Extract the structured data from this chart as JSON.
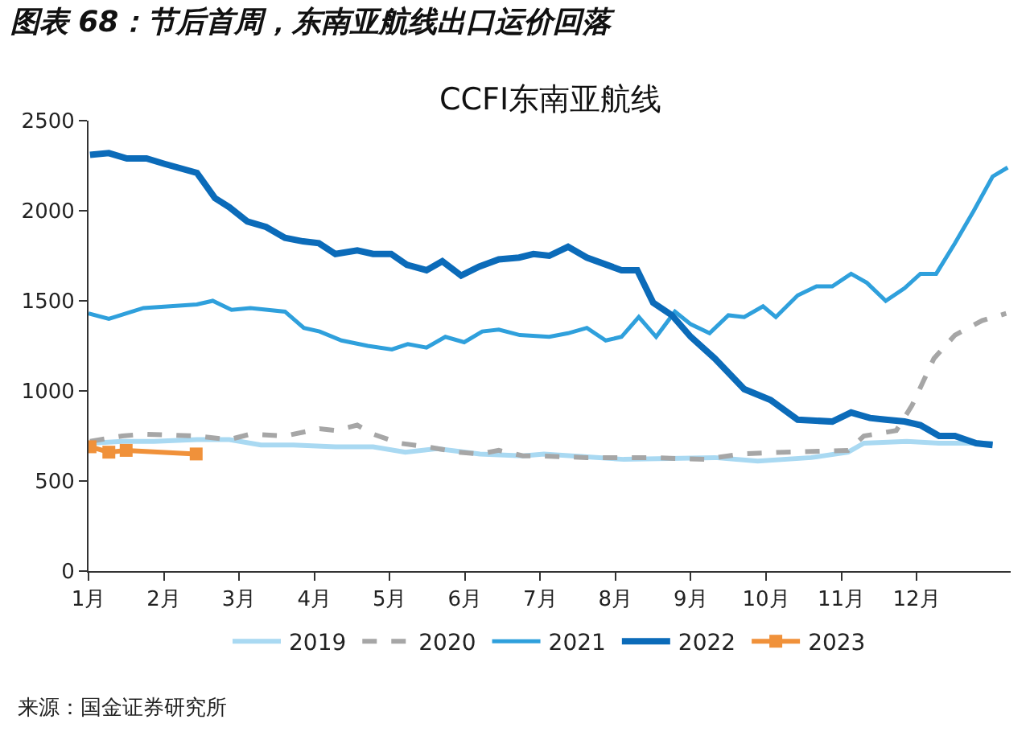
{
  "chart_data": {
    "type": "line",
    "title": "图表 68：节后首周，东南亚航线出口运价回落",
    "subtitle": "CCFI东南亚航线",
    "xlim": [
      1,
      13.25
    ],
    "xticks": [
      {
        "value": 1,
        "label": "1月"
      },
      {
        "value": 2,
        "label": "2月"
      },
      {
        "value": 3,
        "label": "3月"
      },
      {
        "value": 4,
        "label": "4月"
      },
      {
        "value": 5,
        "label": "5月"
      },
      {
        "value": 6,
        "label": "6月"
      },
      {
        "value": 7,
        "label": "7月"
      },
      {
        "value": 8,
        "label": "8月"
      },
      {
        "value": 9,
        "label": "9月"
      },
      {
        "value": 10,
        "label": "10月"
      },
      {
        "value": 11,
        "label": "11月"
      },
      {
        "value": 12,
        "label": "12月"
      }
    ],
    "ylim": [
      0,
      2500
    ],
    "yticks": [
      0,
      500,
      1000,
      1500,
      2000,
      2500
    ],
    "legend": "bottom",
    "series": [
      {
        "name": "2019",
        "color": "#a9d9f2",
        "line_style": "solid",
        "x": [
          1.02,
          1.45,
          1.87,
          2.44,
          2.87,
          3.29,
          3.72,
          4.28,
          4.78,
          5.21,
          5.63,
          6.2,
          6.77,
          7.05,
          8.11,
          9.32,
          9.89,
          10.6,
          11.09,
          11.3,
          11.87,
          12.3,
          12.72,
          13.01
        ],
        "values": [
          710,
          720,
          720,
          730,
          730,
          700,
          700,
          690,
          690,
          660,
          680,
          650,
          640,
          650,
          620,
          630,
          610,
          630,
          660,
          710,
          720,
          710,
          710,
          710
        ]
      },
      {
        "name": "2020",
        "color": "#a6a6a6",
        "line_style": "dashed",
        "x": [
          1.02,
          1.45,
          1.73,
          2.44,
          2.87,
          3.15,
          3.61,
          4.07,
          4.28,
          4.57,
          4.78,
          5.13,
          5.49,
          5.91,
          6.2,
          6.45,
          6.77,
          6.91,
          7.62,
          8.04,
          8.47,
          9.18,
          9.67,
          10.24,
          11.09,
          11.3,
          11.73,
          11.94,
          12.23,
          12.51,
          12.87,
          13.19
        ],
        "values": [
          720,
          750,
          760,
          750,
          730,
          760,
          750,
          790,
          780,
          810,
          760,
          710,
          690,
          660,
          650,
          670,
          640,
          640,
          630,
          630,
          630,
          620,
          650,
          660,
          670,
          750,
          780,
          920,
          1180,
          1310,
          1390,
          1430
        ]
      },
      {
        "name": "2021",
        "color": "#2fa0dc",
        "line_style": "solid",
        "x": [
          1.0,
          1.27,
          1.73,
          2.44,
          2.65,
          2.9,
          3.15,
          3.61,
          3.86,
          4.07,
          4.36,
          4.71,
          5.03,
          5.24,
          5.49,
          5.74,
          5.99,
          6.23,
          6.45,
          6.73,
          7.12,
          7.37,
          7.62,
          7.87,
          8.08,
          8.31,
          8.54,
          8.79,
          9.0,
          9.25,
          9.5,
          9.71,
          9.96,
          10.13,
          10.42,
          10.67,
          10.88,
          11.13,
          11.34,
          11.59,
          11.84,
          12.05,
          12.26,
          12.51,
          12.76,
          13.01,
          13.21
        ],
        "values": [
          1430,
          1400,
          1460,
          1480,
          1500,
          1450,
          1460,
          1440,
          1350,
          1330,
          1280,
          1250,
          1230,
          1260,
          1240,
          1300,
          1270,
          1330,
          1340,
          1310,
          1300,
          1320,
          1350,
          1280,
          1300,
          1410,
          1300,
          1440,
          1370,
          1320,
          1420,
          1410,
          1470,
          1410,
          1530,
          1580,
          1580,
          1650,
          1600,
          1500,
          1570,
          1650,
          1650,
          1820,
          2000,
          2190,
          2240
        ]
      },
      {
        "name": "2022",
        "color": "#0b6bb9",
        "line_style": "solid",
        "x": [
          1.02,
          1.27,
          1.51,
          1.77,
          2.01,
          2.44,
          2.68,
          2.87,
          3.11,
          3.36,
          3.61,
          3.85,
          4.06,
          4.28,
          4.57,
          4.78,
          5.02,
          5.23,
          5.49,
          5.7,
          5.95,
          6.19,
          6.45,
          6.72,
          6.91,
          7.12,
          7.37,
          7.62,
          8.08,
          8.29,
          8.5,
          8.75,
          9.0,
          9.32,
          9.71,
          10.06,
          10.42,
          10.88,
          11.13,
          11.38,
          11.59,
          11.84,
          12.05,
          12.3,
          12.51,
          12.79,
          13.01
        ],
        "values": [
          2310,
          2320,
          2290,
          2290,
          2260,
          2210,
          2070,
          2020,
          1940,
          1910,
          1850,
          1830,
          1820,
          1760,
          1780,
          1760,
          1760,
          1700,
          1670,
          1720,
          1640,
          1690,
          1730,
          1740,
          1760,
          1750,
          1800,
          1740,
          1670,
          1670,
          1490,
          1420,
          1300,
          1180,
          1010,
          950,
          840,
          830,
          880,
          850,
          840,
          830,
          810,
          750,
          750,
          710,
          700
        ]
      },
      {
        "name": "2023",
        "color": "#f0913a",
        "line_style": "solid",
        "marker": "square",
        "x": [
          1.02,
          1.27,
          1.5,
          2.43
        ],
        "values": [
          690,
          660,
          670,
          650
        ]
      }
    ],
    "annotations": [
      "来源：国金证券研究所"
    ]
  }
}
